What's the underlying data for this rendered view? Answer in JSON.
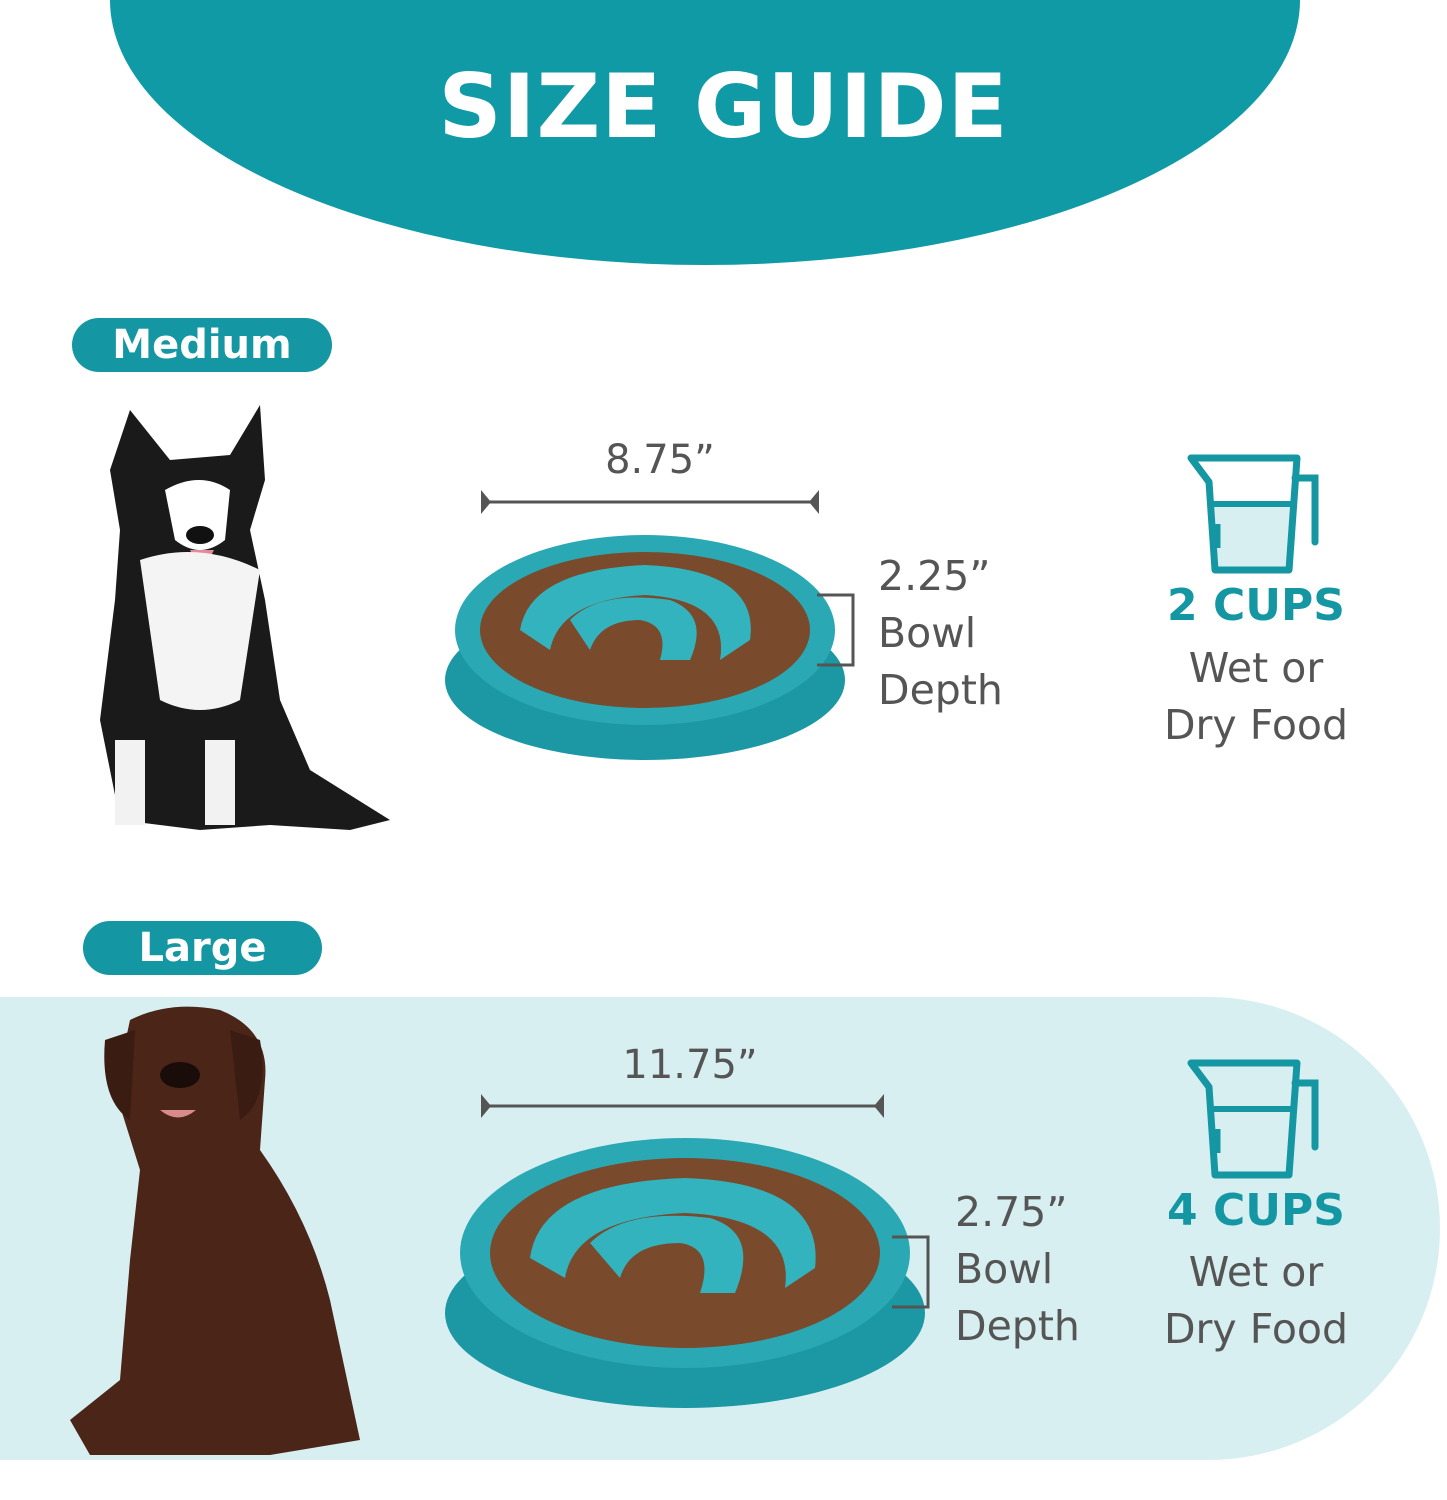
{
  "header": {
    "title": "SIZE GUIDE"
  },
  "colors": {
    "teal": "#0f9aa6",
    "light_band": "#d8eff2",
    "text_gray": "#555555"
  },
  "sizes": [
    {
      "label": "Medium",
      "width": "8.75”",
      "depth": "2.25”",
      "depth_label_1": "Bowl",
      "depth_label_2": "Depth",
      "capacity": "2 CUPS",
      "food_1": "Wet or",
      "food_2": "Dry Food",
      "dog_icon": "border-collie-photo",
      "cup_icon": "measuring-cup-icon"
    },
    {
      "label": "Large",
      "width": "11.75”",
      "depth": "2.75”",
      "depth_label_1": "Bowl",
      "depth_label_2": "Depth",
      "capacity": "4 CUPS",
      "food_1": "Wet or",
      "food_2": "Dry Food",
      "dog_icon": "labrador-photo",
      "cup_icon": "measuring-cup-icon"
    }
  ]
}
